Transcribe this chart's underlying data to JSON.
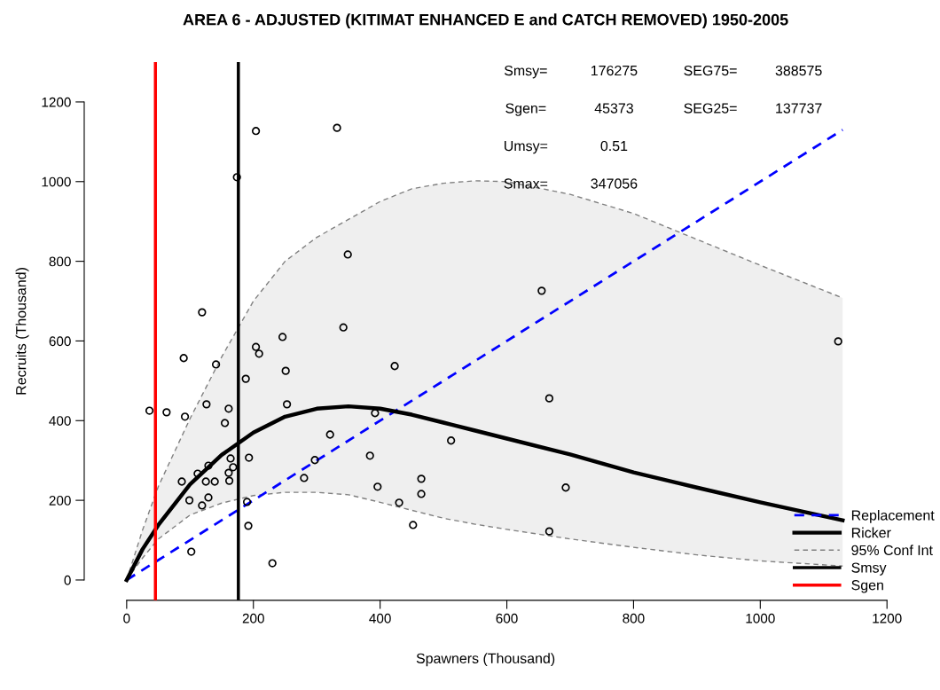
{
  "chart_data": {
    "type": "scatter",
    "title": "AREA 6 - ADJUSTED (KITIMAT ENHANCED E and CATCH REMOVED) 1950-2005",
    "xlabel": "Spawners (Thousand)",
    "ylabel": "Recruits (Thousand)",
    "xlim": [
      -67,
      1200
    ],
    "ylim": [
      -51,
      1300
    ],
    "xticks": [
      0,
      200,
      400,
      600,
      800,
      1000,
      1200
    ],
    "yticks": [
      0,
      200,
      400,
      600,
      800,
      1000,
      1200
    ],
    "grid": false,
    "legend": "bottom right",
    "series": [
      {
        "name": "Replacement",
        "type": "line",
        "line_style": "dashed",
        "marker": "none",
        "color": "#0000ff",
        "x": [
          0,
          1130
        ],
        "values": [
          0,
          1130
        ]
      },
      {
        "name": "Ricker",
        "type": "line",
        "line_style": "solid",
        "marker": "none",
        "color": "#000000",
        "x": [
          0,
          25,
          50,
          100,
          150,
          200,
          250,
          300,
          350,
          400,
          450,
          500,
          550,
          600,
          700,
          800,
          900,
          1000,
          1130
        ],
        "values": [
          0,
          77,
          138,
          240,
          314,
          370,
          410,
          430,
          436,
          430,
          415,
          395,
          375,
          355,
          315,
          270,
          232,
          195,
          150
        ]
      },
      {
        "name": "95% Conf Int",
        "type": "area",
        "line_style": "dashed",
        "marker": "none",
        "color": "#808080",
        "x": [
          0,
          25,
          50,
          100,
          150,
          200,
          250,
          300,
          350,
          400,
          450,
          500,
          550,
          600,
          700,
          800,
          900,
          1000,
          1130
        ],
        "values": [
          0,
          125,
          235,
          405,
          560,
          700,
          800,
          860,
          905,
          950,
          982,
          996,
          1002,
          1000,
          968,
          920,
          855,
          790,
          708
        ]
      },
      {
        "type": "line",
        "line_style": "dashed",
        "marker": "none",
        "color": "#808080",
        "x": [
          0,
          25,
          50,
          100,
          150,
          200,
          250,
          300,
          350,
          400,
          450,
          500,
          550,
          600,
          700,
          800,
          900,
          1000,
          1130
        ],
        "values": [
          0,
          55,
          103,
          163,
          193,
          212,
          220,
          220,
          214,
          195,
          175,
          155,
          140,
          127,
          103,
          82,
          63,
          48,
          35
        ]
      },
      {
        "name": "Smsy",
        "type": "line",
        "line_style": "solid",
        "marker": "none",
        "color": "#000000",
        "x": [
          176.275,
          176.275
        ],
        "values": [
          -51,
          1300
        ]
      },
      {
        "name": "Sgen",
        "type": "line",
        "line_style": "solid",
        "marker": "none",
        "color": "#ff0000",
        "x": [
          45.373,
          45.373
        ],
        "values": [
          -51,
          1300
        ]
      },
      {
        "marker": "circle",
        "color": "#000000",
        "x": [
          90,
          36,
          63,
          92,
          141,
          126,
          161,
          155,
          164,
          129,
          112,
          87,
          125,
          139,
          161,
          168,
          162,
          99,
          129,
          119,
          190,
          192,
          102,
          230,
          188,
          193,
          204,
          209,
          246,
          251,
          253,
          321,
          297,
          280,
          384,
          396,
          392,
          423,
          430,
          204,
          332,
          174,
          349,
          119,
          342,
          1123,
          667,
          512,
          465,
          465,
          693,
          452,
          667,
          655
        ],
        "values": [
          557,
          425,
          421,
          410,
          541,
          441,
          430,
          394,
          305,
          287,
          267,
          247,
          247,
          247,
          269,
          283,
          249,
          200,
          207,
          187,
          196,
          136,
          71,
          42,
          505,
          307,
          585,
          568,
          610,
          525,
          441,
          365,
          301,
          256,
          312,
          234,
          419,
          537,
          194,
          1127,
          1135,
          1011,
          817,
          672,
          634,
          599,
          456,
          350,
          254,
          216,
          232,
          138,
          122,
          726
        ]
      }
    ],
    "annotations": [
      "Smsy=",
      "176275",
      "SEG75=",
      "388575",
      "Sgen=",
      "45373",
      "SEG25=",
      "137737",
      "Umsy=",
      "0.51",
      "Smax=",
      "347056"
    ]
  }
}
